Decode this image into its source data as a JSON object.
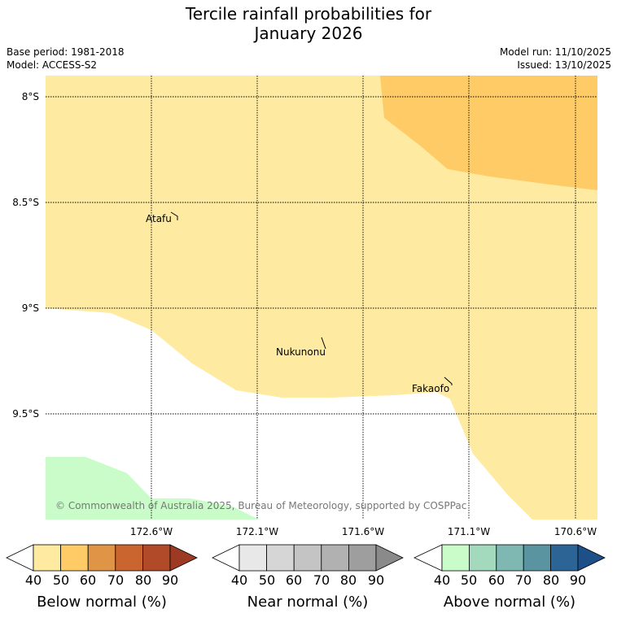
{
  "header": {
    "title_line1": "Tercile rainfall probabilities for",
    "title_line2": "January 2026",
    "base_period": "Base period: 1981-2018",
    "model": "Model: ACCESS-S2",
    "model_run": "Model run: 11/10/2025",
    "issued": "Issued: 13/10/2025"
  },
  "map": {
    "lat_labels": [
      "8°S",
      "8.5°S",
      "9°S",
      "9.5°S"
    ],
    "lon_labels": [
      "172.6°W",
      "172.1°W",
      "171.6°W",
      "171.1°W",
      "170.6°W"
    ],
    "places": [
      "Atafu",
      "Nukunonu",
      "Fakaofo"
    ],
    "copyright": "© Commonwealth of Australia 2025, Bureau of Meteorology, supported by COSPPac"
  },
  "colorbars": {
    "ticks": [
      "40",
      "50",
      "60",
      "70",
      "80",
      "90"
    ],
    "below": {
      "label": "Below normal (%)",
      "colors": [
        "#ffffff",
        "#feeaa0",
        "#fecb66",
        "#e09445",
        "#cb6530",
        "#b04a28",
        "#9c3a24"
      ]
    },
    "near": {
      "label": "Near normal (%)",
      "colors": [
        "#ffffff",
        "#e8e8e8",
        "#d6d6d6",
        "#c4c4c4",
        "#b1b1b1",
        "#9e9e9e",
        "#8a8a8a"
      ]
    },
    "above": {
      "label": "Above normal (%)",
      "colors": [
        "#ffffff",
        "#c9fcc9",
        "#a3d9bd",
        "#7fb7b3",
        "#5a94a0",
        "#2d6496",
        "#1d4f88"
      ]
    }
  }
}
